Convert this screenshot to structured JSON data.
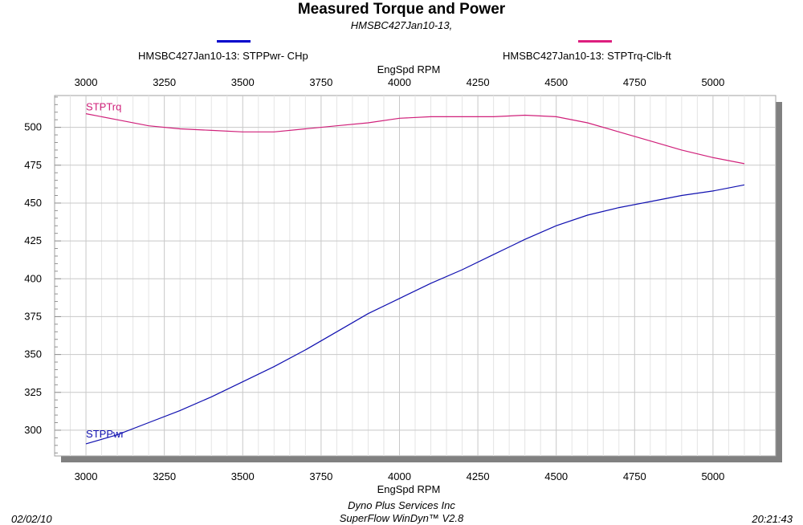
{
  "chart_data": {
    "type": "line",
    "title": "Measured Torque and Power",
    "subtitle": "HMSBC427Jan10-13,",
    "xlabel": "EngSpd  RPM",
    "xlim": [
      2900,
      5200
    ],
    "ylim": [
      283,
      521
    ],
    "x_ticks": [
      3000,
      3250,
      3500,
      3750,
      4000,
      4250,
      4500,
      4750,
      5000
    ],
    "y_ticks": [
      300,
      325,
      350,
      375,
      400,
      425,
      450,
      475,
      500
    ],
    "grid": true,
    "legend_position": "top",
    "series": [
      {
        "name": "HMSBC427Jan10-13: STPPwr- CHp",
        "label": "STPPwr",
        "color": "#1010b0",
        "x": [
          3000,
          3100,
          3200,
          3300,
          3400,
          3500,
          3600,
          3700,
          3800,
          3900,
          4000,
          4100,
          4200,
          4300,
          4400,
          4500,
          4600,
          4700,
          4800,
          4900,
          5000,
          5100
        ],
        "y": [
          291,
          297,
          305,
          313,
          322,
          332,
          342,
          353,
          365,
          377,
          387,
          397,
          406,
          416,
          426,
          435,
          442,
          447,
          451,
          455,
          458,
          462
        ]
      },
      {
        "name": "HMSBC427Jan10-13: STPTrq-Clb-ft",
        "label": "STPTrq",
        "color": "#d0207a",
        "x": [
          3000,
          3100,
          3200,
          3300,
          3400,
          3500,
          3600,
          3700,
          3800,
          3900,
          4000,
          4100,
          4200,
          4300,
          4400,
          4500,
          4600,
          4700,
          4800,
          4900,
          5000,
          5100
        ],
        "y": [
          509,
          505,
          501,
          499,
          498,
          497,
          497,
          499,
          501,
          503,
          506,
          507,
          507,
          507,
          508,
          507,
          503,
          497,
          491,
          485,
          480,
          476
        ]
      }
    ]
  },
  "legend_swatch_colors": [
    "#0000cc",
    "#dd1e7e"
  ],
  "footer": {
    "date": "02/02/10",
    "company": "Dyno Plus Services Inc",
    "software": "SuperFlow WinDyn™ V2.8",
    "time": "20:21:43"
  }
}
